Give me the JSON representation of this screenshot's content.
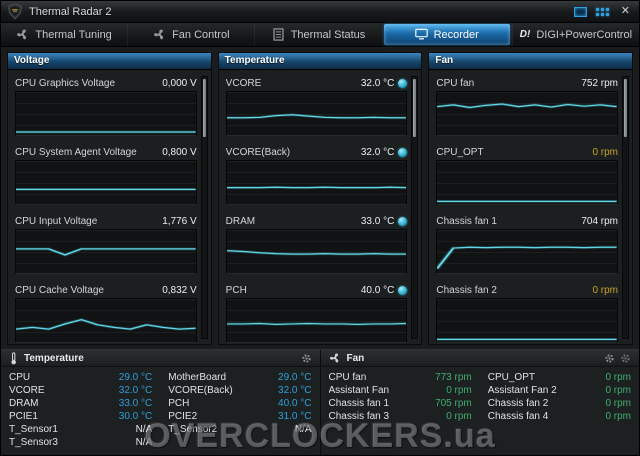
{
  "window": {
    "title": "Thermal Radar 2",
    "close_label": "✕"
  },
  "logo": {
    "text": "TUF",
    "subtext": "THE ULTIMATE FORCE"
  },
  "nav": {
    "digi_badge": "D!",
    "tabs": [
      {
        "label": "Thermal Tuning"
      },
      {
        "label": "Fan Control"
      },
      {
        "label": "Thermal Status"
      },
      {
        "label": "Recorder"
      },
      {
        "label": "DIGI+PowerControl"
      }
    ]
  },
  "panels": {
    "voltage": {
      "header": "Voltage",
      "items": [
        {
          "label": "CPU Graphics Voltage",
          "value": "0,000 V",
          "spark": [
            7,
            7,
            7,
            7,
            7,
            7,
            7,
            7,
            7,
            7,
            7,
            7
          ]
        },
        {
          "label": "CPU System Agent Voltage",
          "value": "0,800 V",
          "spark": [
            34,
            34,
            34,
            34,
            34,
            34,
            34,
            34,
            34,
            34,
            34,
            34
          ]
        },
        {
          "label": "CPU Input Voltage",
          "value": "1,776 V",
          "spark": [
            56,
            56,
            56,
            42,
            56,
            56,
            56,
            56,
            56,
            56,
            56,
            56
          ]
        },
        {
          "label": "CPU Cache Voltage",
          "value": "0,832 V",
          "spark": [
            30,
            34,
            30,
            42,
            52,
            40,
            34,
            30,
            40,
            34,
            30,
            32
          ]
        }
      ]
    },
    "temperature": {
      "header": "Temperature",
      "items": [
        {
          "label": "VCORE",
          "value": "32.0 °C",
          "spark": [
            40,
            40,
            41,
            45,
            47,
            44,
            41,
            40,
            40,
            41,
            40,
            40
          ]
        },
        {
          "label": "VCORE(Back)",
          "value": "32.0 °C",
          "spark": [
            38,
            38,
            38,
            39,
            38,
            38,
            39,
            38,
            38,
            38,
            39,
            38
          ]
        },
        {
          "label": "DRAM",
          "value": "33.0 °C",
          "spark": [
            52,
            50,
            47,
            45,
            44,
            44,
            45,
            44,
            44,
            45,
            44,
            44
          ]
        },
        {
          "label": "PCH",
          "value": "40.0 °C",
          "spark": [
            42,
            42,
            43,
            41,
            42,
            43,
            42,
            42,
            41,
            42,
            42,
            43
          ]
        }
      ]
    },
    "fan": {
      "header": "Fan",
      "items": [
        {
          "label": "CPU fan",
          "value": "752 rpm",
          "spark": [
            66,
            70,
            64,
            69,
            72,
            66,
            70,
            65,
            71,
            67,
            70,
            66
          ]
        },
        {
          "label": "CPU_OPT",
          "value": "0 rpm",
          "spark": [
            6,
            6,
            6,
            6,
            6,
            6,
            6,
            6,
            6,
            6,
            6,
            6
          ]
        },
        {
          "label": "Chassis fan 1",
          "value": "704 rpm",
          "spark": [
            10,
            58,
            60,
            59,
            60,
            60,
            59,
            60,
            60,
            59,
            60,
            60
          ]
        },
        {
          "label": "Chassis fan 2",
          "value": "0 rpm",
          "spark": [
            6,
            6,
            6,
            6,
            6,
            6,
            6,
            6,
            6,
            6,
            6,
            6
          ]
        }
      ]
    }
  },
  "bottom": {
    "temperature": {
      "title": "Temperature",
      "left": [
        {
          "label": "CPU",
          "value": "29.0 °C"
        },
        {
          "label": "VCORE",
          "value": "32.0 °C"
        },
        {
          "label": "DRAM",
          "value": "33.0 °C"
        },
        {
          "label": "PCIE1",
          "value": "30.0 °C"
        },
        {
          "label": "T_Sensor1",
          "value": "N/A"
        },
        {
          "label": "T_Sensor3",
          "value": "N/A"
        }
      ],
      "right": [
        {
          "label": "MotherBoard",
          "value": "29.0 °C"
        },
        {
          "label": "VCORE(Back)",
          "value": "32.0 °C"
        },
        {
          "label": "PCH",
          "value": "40.0 °C"
        },
        {
          "label": "PCIE2",
          "value": "31.0 °C"
        },
        {
          "label": "T_Sensor2",
          "value": "N/A"
        }
      ]
    },
    "fan": {
      "title": "Fan",
      "left": [
        {
          "label": "CPU fan",
          "value": "773 rpm"
        },
        {
          "label": "Assistant Fan",
          "value": "0 rpm"
        },
        {
          "label": "Chassis fan 1",
          "value": "705 rpm"
        },
        {
          "label": "Chassis fan 3",
          "value": "0 rpm"
        }
      ],
      "right": [
        {
          "label": "CPU_OPT",
          "value": "0 rpm"
        },
        {
          "label": "Assistant Fan 2",
          "value": "0 rpm"
        },
        {
          "label": "Chassis fan 2",
          "value": "0 rpm"
        },
        {
          "label": "Chassis fan 4",
          "value": "0 rpm"
        }
      ]
    }
  },
  "watermark": "OVERCLOCKERS.ua",
  "colors": {
    "trace": "#5ed7e9",
    "accent": "#1f7ec2",
    "warn": "#c9a22b",
    "temp_value": "#2f9fd9",
    "fan_value": "#3fae6e"
  }
}
